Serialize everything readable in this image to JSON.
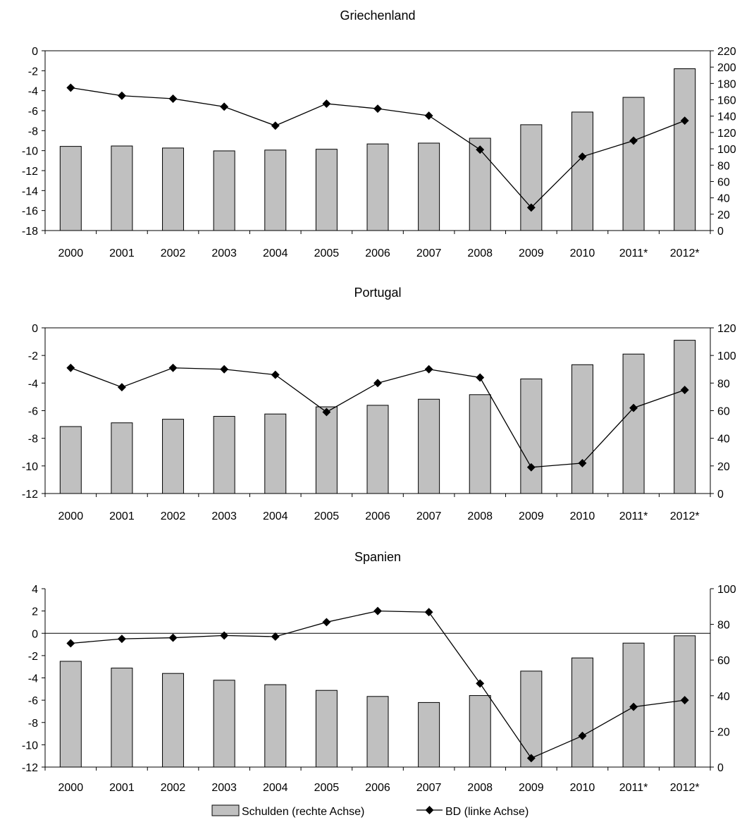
{
  "chart_data": [
    {
      "type": "bar+line",
      "title": "Griechenland",
      "categories": [
        "2000",
        "2001",
        "2002",
        "2003",
        "2004",
        "2005",
        "2006",
        "2007",
        "2008",
        "2009",
        "2010",
        "2011*",
        "2012*"
      ],
      "series": [
        {
          "name": "Schulden (rechte Achse)",
          "type": "bar",
          "axis": "right",
          "values": [
            103,
            103.5,
            101,
            97.5,
            98.5,
            99.5,
            106,
            107,
            113,
            129.5,
            145,
            163,
            198
          ]
        },
        {
          "name": "BD (linke Achse)",
          "type": "line",
          "axis": "left",
          "values": [
            -3.7,
            -4.5,
            -4.8,
            -5.6,
            -7.5,
            -5.3,
            -5.8,
            -6.5,
            -9.9,
            -15.7,
            -10.6,
            -9.0,
            -7.0
          ]
        }
      ],
      "ylim_left": [
        -18,
        0
      ],
      "yticks_left": [
        0,
        -2,
        -4,
        -6,
        -8,
        -10,
        -12,
        -14,
        -16,
        -18
      ],
      "ylim_right": [
        0,
        220
      ],
      "yticks_right": [
        220,
        200,
        180,
        160,
        140,
        120,
        100,
        80,
        60,
        40,
        20,
        0
      ],
      "zero_line": false,
      "colors": {
        "bar_fill": "#c0c0c0",
        "line": "#000000"
      }
    },
    {
      "type": "bar+line",
      "title": "Portugal",
      "categories": [
        "2000",
        "2001",
        "2002",
        "2003",
        "2004",
        "2005",
        "2006",
        "2007",
        "2008",
        "2009",
        "2010",
        "2011*",
        "2012*"
      ],
      "series": [
        {
          "name": "Schulden (rechte Achse)",
          "type": "bar",
          "axis": "right",
          "values": [
            48.5,
            51.2,
            53.8,
            55.9,
            57.6,
            62.8,
            63.9,
            68.3,
            71.6,
            83.0,
            93.3,
            101.0,
            111.0
          ]
        },
        {
          "name": "BD (linke Achse)",
          "type": "line",
          "axis": "left",
          "values": [
            -2.9,
            -4.3,
            -2.9,
            -3.0,
            -3.4,
            -6.1,
            -4.0,
            -3.0,
            -3.6,
            -10.1,
            -9.8,
            -5.8,
            -4.5
          ]
        }
      ],
      "ylim_left": [
        -12,
        0
      ],
      "yticks_left": [
        0,
        -2,
        -4,
        -6,
        -8,
        -10,
        -12
      ],
      "ylim_right": [
        0,
        120
      ],
      "yticks_right": [
        120,
        100,
        80,
        60,
        40,
        20,
        0
      ],
      "zero_line": false,
      "colors": {
        "bar_fill": "#c0c0c0",
        "line": "#000000"
      }
    },
    {
      "type": "bar+line",
      "title": "Spanien",
      "categories": [
        "2000",
        "2001",
        "2002",
        "2003",
        "2004",
        "2005",
        "2006",
        "2007",
        "2008",
        "2009",
        "2010",
        "2011*",
        "2012*"
      ],
      "series": [
        {
          "name": "Schulden (rechte Achse)",
          "type": "bar",
          "axis": "right",
          "values": [
            59.3,
            55.5,
            52.5,
            48.7,
            46.2,
            43.0,
            39.6,
            36.2,
            40.1,
            53.8,
            61.2,
            69.5,
            73.6
          ]
        },
        {
          "name": "BD (linke Achse)",
          "type": "line",
          "axis": "left",
          "values": [
            -0.9,
            -0.5,
            -0.4,
            -0.2,
            -0.3,
            1.0,
            2.0,
            1.9,
            -4.5,
            -11.2,
            -9.2,
            -6.6,
            -6.0
          ]
        }
      ],
      "ylim_left": [
        -12,
        4
      ],
      "yticks_left": [
        4,
        2,
        0,
        -2,
        -4,
        -6,
        -8,
        -10,
        -12
      ],
      "ylim_right": [
        0,
        100
      ],
      "yticks_right": [
        100,
        80,
        60,
        40,
        20,
        0
      ],
      "zero_line": true,
      "colors": {
        "bar_fill": "#c0c0c0",
        "line": "#000000"
      }
    }
  ],
  "legend": {
    "placement": "bottom-center",
    "bar_label": "Schulden (rechte Achse)",
    "line_label": "BD (linke Achse)"
  }
}
